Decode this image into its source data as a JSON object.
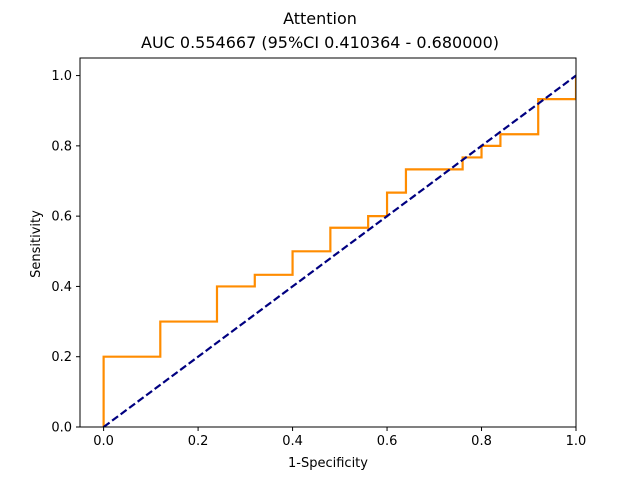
{
  "chart_data": {
    "type": "line",
    "title": "Attention",
    "subtitle": "AUC 0.554667 (95%CI 0.410364 - 0.680000)",
    "xlabel": "1-Specificity",
    "ylabel": "Sensitivity",
    "xlim": [
      -0.05,
      1.0
    ],
    "ylim": [
      0.0,
      1.05
    ],
    "x_ticks": [
      0.0,
      0.2,
      0.4,
      0.6,
      0.8,
      1.0
    ],
    "x_tick_labels": [
      "0.0",
      "0.2",
      "0.4",
      "0.6",
      "0.8",
      "1.0"
    ],
    "y_ticks": [
      0.0,
      0.2,
      0.4,
      0.6,
      0.8,
      1.0
    ],
    "y_tick_labels": [
      "0.0",
      "0.2",
      "0.4",
      "0.6",
      "0.8",
      "1.0"
    ],
    "grid": false,
    "series": [
      {
        "color": "#ff8c00",
        "style": "solid",
        "x": [
          0.0,
          0.0,
          0.12,
          0.12,
          0.24,
          0.24,
          0.32,
          0.32,
          0.4,
          0.4,
          0.48,
          0.48,
          0.56,
          0.56,
          0.6,
          0.6,
          0.64,
          0.64,
          0.76,
          0.76,
          0.8,
          0.8,
          0.84,
          0.84,
          0.92,
          0.92,
          1.0,
          1.0
        ],
        "y": [
          0.0,
          0.2,
          0.2,
          0.3,
          0.3,
          0.4,
          0.4,
          0.433,
          0.433,
          0.5,
          0.5,
          0.567,
          0.567,
          0.6,
          0.6,
          0.667,
          0.667,
          0.733,
          0.733,
          0.767,
          0.767,
          0.8,
          0.8,
          0.833,
          0.833,
          0.933,
          0.933,
          1.0
        ]
      },
      {
        "color": "#000080",
        "style": "dashed",
        "x": [
          0.0,
          1.0
        ],
        "y": [
          0.0,
          1.0
        ]
      }
    ]
  }
}
